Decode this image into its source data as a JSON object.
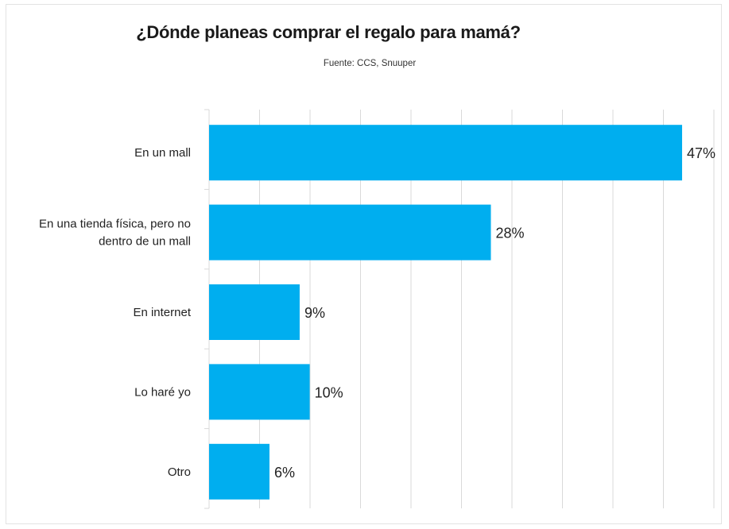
{
  "chart_data": {
    "type": "bar",
    "orientation": "horizontal",
    "title": "¿Dónde planeas comprar el regalo para mamá?",
    "subtitle": "Fuente: CCS, Snuuper",
    "categories": [
      [
        "En un mall"
      ],
      [
        "En una tienda física, pero no",
        "dentro de un mall"
      ],
      [
        "En internet"
      ],
      [
        "Lo haré yo"
      ],
      [
        "Otro"
      ]
    ],
    "values": [
      47,
      28,
      9,
      10,
      6
    ],
    "value_labels": [
      "47%",
      "28%",
      "9%",
      "10%",
      "6%"
    ],
    "xlim": [
      0,
      50
    ],
    "grid": true,
    "bar_color": "#00aeef"
  }
}
